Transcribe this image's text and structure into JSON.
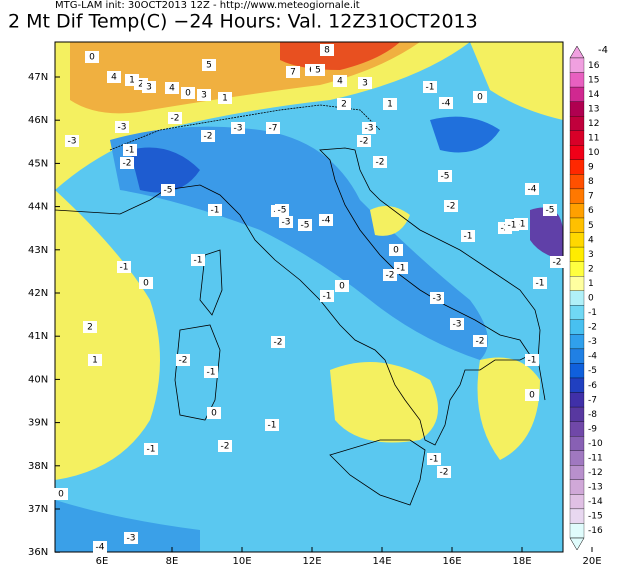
{
  "header": {
    "subtitle": "MTG-LAM init: 30OCT2013 12Z - http://www.meteogiornale.it",
    "title": "2 Mt Dif Temp(C) −24 Hours: Val. 12Z31OCT2013"
  },
  "map": {
    "lat_labels": [
      "47N",
      "46N",
      "45N",
      "44N",
      "43N",
      "42N",
      "41N",
      "40N",
      "39N",
      "38N",
      "37N",
      "36N"
    ],
    "lon_labels": [
      "6E",
      "8E",
      "10E",
      "12E",
      "14E",
      "16E",
      "18E",
      "20E"
    ],
    "contour_labels": [
      "0",
      "5",
      "4",
      "1",
      "2",
      "3",
      "4",
      "0",
      "3",
      "1",
      "7",
      "6",
      "5",
      "8",
      "4",
      "3",
      "2",
      "1",
      "-1",
      "-4",
      "0",
      "-3",
      "-2",
      "-1",
      "-3",
      "-2",
      "-1",
      "-2",
      "-3",
      "-7",
      "-3",
      "-2",
      "-5",
      "-4",
      "-5",
      "-3",
      "-4",
      "-5",
      "-2",
      "-5",
      "-4",
      "-1",
      "-1",
      "0",
      "-2",
      "-1",
      "0",
      "-1",
      "2",
      "1",
      "-1",
      "0",
      "-2",
      "-1",
      "-3",
      "-2",
      "-1",
      "-2",
      "-3",
      "-1",
      "-2",
      "-5",
      "-2",
      "-1",
      "0",
      "-1",
      "0",
      "-2",
      "-1",
      "-1",
      "-1",
      "-2",
      "-2",
      "-4",
      "-3",
      "0"
    ]
  },
  "colorbar": {
    "top_label": "-4",
    "labels": [
      16,
      15,
      14,
      13,
      12,
      11,
      10,
      9,
      8,
      7,
      6,
      5,
      4,
      3,
      2,
      1,
      0,
      -1,
      -2,
      -3,
      -4,
      -5,
      -6,
      -7,
      -8,
      -9,
      -10,
      -11,
      -12,
      -13,
      -14,
      -15,
      -16
    ],
    "colors": [
      "#f0a0e0",
      "#e860c0",
      "#d02890",
      "#b00050",
      "#c0003c",
      "#d80028",
      "#f00018",
      "#ff2800",
      "#ff5000",
      "#ff7800",
      "#ffa000",
      "#ffc000",
      "#ffd800",
      "#ffec00",
      "#ffff40",
      "#ffffa0",
      "#b0f0f8",
      "#70d8f4",
      "#48c0f0",
      "#30a0ec",
      "#2080e4",
      "#1060dc",
      "#2040c0",
      "#4030a8",
      "#5838a0",
      "#7048a8",
      "#8860b4",
      "#a078c0",
      "#b890cc",
      "#d0a8d8",
      "#e0c0e4",
      "#e8d8f0",
      "#e0fcfc"
    ]
  }
}
